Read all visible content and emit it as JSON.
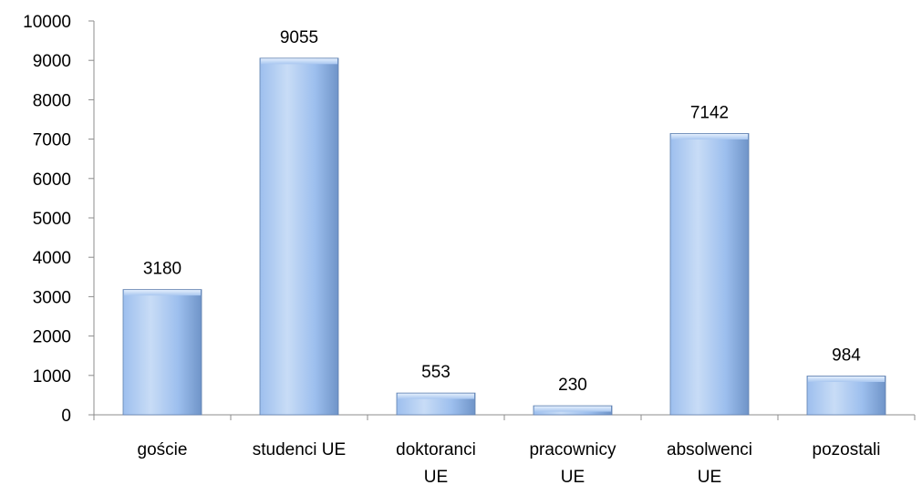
{
  "chart_data": {
    "type": "bar",
    "categories": [
      [
        "goście"
      ],
      [
        "studenci UE"
      ],
      [
        "doktoranci",
        "UE"
      ],
      [
        "pracownicy",
        "UE"
      ],
      [
        "absolwenci",
        "UE"
      ],
      [
        "pozostali"
      ]
    ],
    "values": [
      3180,
      9055,
      553,
      230,
      7142,
      984
    ],
    "value_labels": [
      "3180",
      "9055",
      "553",
      "230",
      "7142",
      "984"
    ],
    "y_ticks": [
      "0",
      "1000",
      "2000",
      "3000",
      "4000",
      "5000",
      "6000",
      "7000",
      "8000",
      "9000",
      "10000"
    ],
    "ylim": [
      0,
      10000
    ],
    "grid": false,
    "legend": "none",
    "colors": {
      "bar_light": "#c8dcf6",
      "bar_mid": "#9dbfee",
      "bar_dark": "#6f94c8",
      "bar_edge": "#5f7fae",
      "axis": "#8c8c8c"
    }
  }
}
